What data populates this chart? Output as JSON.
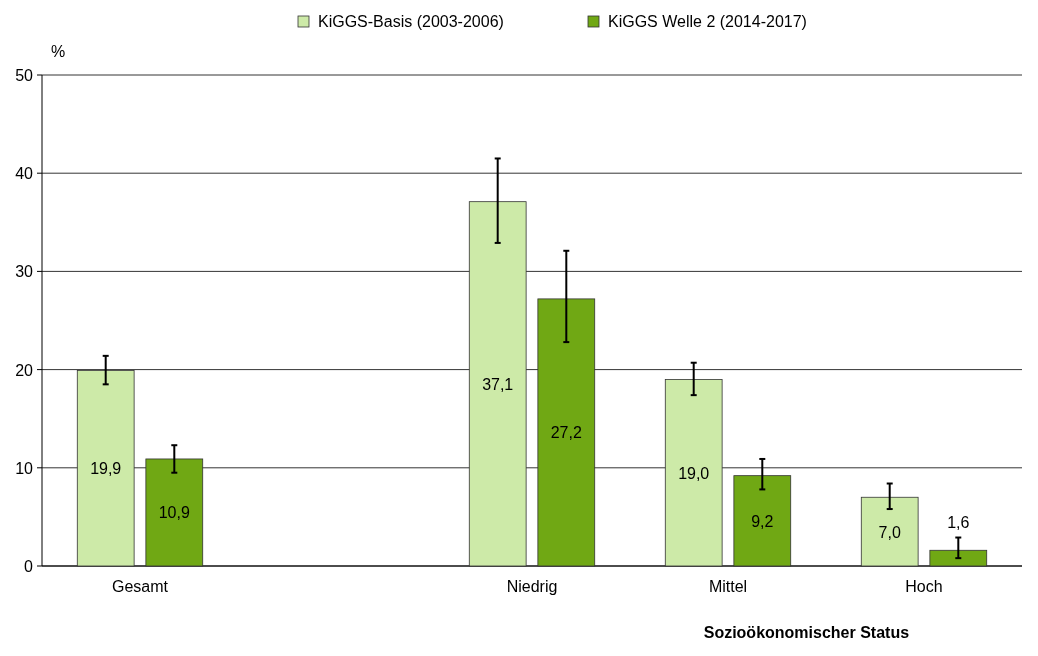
{
  "chart_data": {
    "type": "bar",
    "categories": [
      "Gesamt",
      null,
      "Niedrig",
      "Mittel",
      "Hoch"
    ],
    "series": [
      {
        "name": "KiGGS-Basis (2003-2006)",
        "color": "#cdeaa8",
        "values": [
          19.9,
          null,
          37.1,
          19.0,
          7.0
        ],
        "errors": [
          [
            18.5,
            21.4
          ],
          null,
          [
            32.9,
            41.5
          ],
          [
            17.4,
            20.7
          ],
          [
            5.8,
            8.4
          ]
        ],
        "value_labels": [
          "19,9",
          null,
          "37,1",
          "19,0",
          "7,0"
        ]
      },
      {
        "name": "KiGGS Welle 2 (2014-2017)",
        "color": "#70a814",
        "values": [
          10.9,
          null,
          27.2,
          9.2,
          1.6
        ],
        "errors": [
          [
            9.5,
            12.3
          ],
          null,
          [
            22.8,
            32.1
          ],
          [
            7.8,
            10.9
          ],
          [
            0.8,
            2.9
          ]
        ],
        "value_labels": [
          "10,9",
          null,
          "27,2",
          "9,2",
          "1,6"
        ]
      }
    ],
    "ylabel": "%",
    "xlabel": "Sozioökonomischer Status",
    "ylim": [
      0,
      50
    ],
    "yticks": [
      0,
      10,
      20,
      30,
      40,
      50
    ],
    "grid": "y",
    "legend": "top"
  }
}
